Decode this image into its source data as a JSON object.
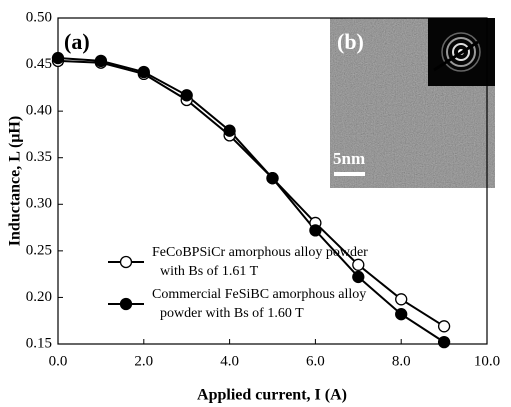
{
  "chart_data": {
    "type": "line",
    "panel_label": "(a)",
    "xlabel": "Applied current, I (A)",
    "ylabel": "Inductance, L (μH)",
    "x": [
      0,
      1,
      2,
      3,
      4,
      5,
      6,
      7,
      8,
      9
    ],
    "series": [
      {
        "name": "FeCoBPSiCr amorphous alloy powder with Bs of 1.61 T",
        "color": "#ffffff",
        "values": [
          0.454,
          0.452,
          0.44,
          0.412,
          0.374,
          0.328,
          0.28,
          0.235,
          0.198,
          0.169
        ]
      },
      {
        "name": "Commercial FeSiBC amorphous alloy powder with Bs of 1.60 T",
        "color": "#000000",
        "values": [
          0.457,
          0.454,
          0.442,
          0.417,
          0.379,
          0.328,
          0.272,
          0.222,
          0.182,
          0.152
        ]
      }
    ],
    "xlim": [
      0,
      10
    ],
    "xticks": [
      {
        "value": 0,
        "label": "0.0"
      },
      {
        "value": 2,
        "label": "2.0"
      },
      {
        "value": 4,
        "label": "4.0"
      },
      {
        "value": 6,
        "label": "6.0"
      },
      {
        "value": 8,
        "label": "8.0"
      },
      {
        "value": 10,
        "label": "10.0"
      }
    ],
    "ylim": [
      0.15,
      0.5
    ],
    "yticks": [
      {
        "value": 0.15,
        "label": "0.15"
      },
      {
        "value": 0.2,
        "label": "0.20"
      },
      0.25,
      {
        "value": 0.3,
        "label": "0.30"
      },
      0.35,
      {
        "value": 0.4,
        "label": "0.40"
      },
      0.45,
      {
        "value": 0.5,
        "label": "0.50"
      }
    ],
    "legend": "lower left",
    "inset": {
      "label": "(b)",
      "scale_bar": "5nm"
    }
  }
}
